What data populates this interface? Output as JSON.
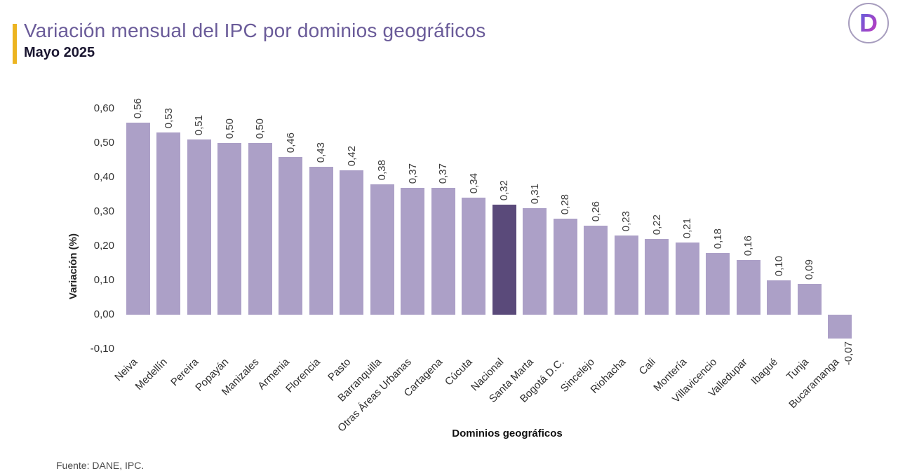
{
  "header": {
    "title": "Variación mensual del IPC por dominios geográficos",
    "subtitle": "Mayo 2025"
  },
  "logo": {
    "letter": "D"
  },
  "colors": {
    "accent_yellow": "#ECB420",
    "title_purple": "#6A5B99",
    "bar_light": "#ACA0C7",
    "bar_highlight": "#5A4A7A"
  },
  "chart_data": {
    "type": "bar",
    "title": "Variación mensual del IPC por dominios geográficos",
    "subtitle": "Mayo 2025",
    "xlabel": "Dominios geográficos",
    "ylabel": "Variación (%)",
    "ylim": [
      -0.1,
      0.6
    ],
    "grid": false,
    "legend": false,
    "yticks": [
      {
        "label": "0,60",
        "value": 0.6
      },
      {
        "label": "0,50",
        "value": 0.5
      },
      {
        "label": "0,40",
        "value": 0.4
      },
      {
        "label": "0,30",
        "value": 0.3
      },
      {
        "label": "0,20",
        "value": 0.2
      },
      {
        "label": "0,10",
        "value": 0.1
      },
      {
        "label": "0,00",
        "value": 0.0
      },
      {
        "label": "-0,10",
        "value": -0.1
      }
    ],
    "categories": [
      "Neiva",
      "Medellín",
      "Pereira",
      "Popayán",
      "Manizales",
      "Armenia",
      "Florencia",
      "Pasto",
      "Barranquilla",
      "Otras Áreas Urbanas",
      "Cartagena",
      "Cúcuta",
      "Nacional",
      "Santa Marta",
      "Bogotá D.C.",
      "Sincelejo",
      "Riohacha",
      "Cali",
      "Montería",
      "Villavicencio",
      "Valledupar",
      "Ibagué",
      "Tunja",
      "Bucaramanga"
    ],
    "values": [
      0.56,
      0.53,
      0.51,
      0.5,
      0.5,
      0.46,
      0.43,
      0.42,
      0.38,
      0.37,
      0.37,
      0.34,
      0.32,
      0.31,
      0.28,
      0.26,
      0.23,
      0.22,
      0.21,
      0.18,
      0.16,
      0.1,
      0.09,
      -0.07
    ],
    "value_labels": [
      "0,56",
      "0,53",
      "0,51",
      "0,50",
      "0,50",
      "0,46",
      "0,43",
      "0,42",
      "0,38",
      "0,37",
      "0,37",
      "0,34",
      "0,32",
      "0,31",
      "0,28",
      "0,26",
      "0,23",
      "0,22",
      "0,21",
      "0,18",
      "0,16",
      "0,10",
      "0,09",
      "-0,07"
    ],
    "highlight_category": "Nacional",
    "bar_color": "#ACA0C7",
    "highlight_color": "#5A4A7A"
  },
  "footer": {
    "source": "Fuente: DANE, IPC."
  }
}
